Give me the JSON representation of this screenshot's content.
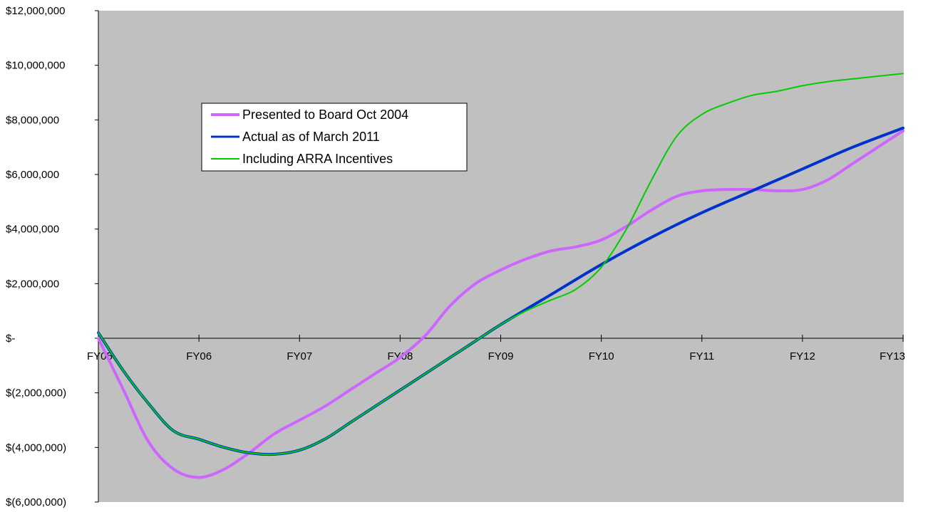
{
  "chart_data": {
    "type": "line",
    "title": "",
    "xlabel": "",
    "ylabel": "",
    "categories": [
      "FY05",
      "FY06",
      "FY07",
      "FY08",
      "FY09",
      "FY10",
      "FY11",
      "FY12",
      "FY13"
    ],
    "y_tick_labels": [
      "$12,000,000",
      "$10,000,000",
      "$8,000,000",
      "$6,000,000",
      "$4,000,000",
      "$2,000,000",
      "$-",
      "$(2,000,000)",
      "$(4,000,000)",
      "$(6,000,000)"
    ],
    "ylim": [
      -6000000,
      12000000
    ],
    "grid": false,
    "legend_position": "upper-left",
    "series": [
      {
        "name": "Presented to Board Oct 2004",
        "color": "#cc66ff",
        "x": [
          0,
          0.25,
          0.5,
          0.75,
          1.0,
          1.25,
          1.5,
          1.75,
          2.0,
          2.25,
          2.5,
          2.75,
          3.0,
          3.25,
          3.5,
          3.75,
          4.0,
          4.25,
          4.5,
          4.75,
          5.0,
          5.25,
          5.5,
          5.75,
          6.0,
          6.25,
          6.5,
          6.75,
          7.0,
          7.25,
          7.5,
          7.75,
          8.0
        ],
        "values": [
          0,
          -1900000,
          -3800000,
          -4800000,
          -5100000,
          -4800000,
          -4200000,
          -3500000,
          -3000000,
          -2500000,
          -1900000,
          -1300000,
          -700000,
          100000,
          1200000,
          2000000,
          2500000,
          2900000,
          3200000,
          3350000,
          3600000,
          4100000,
          4700000,
          5200000,
          5400000,
          5450000,
          5450000,
          5400000,
          5450000,
          5800000,
          6400000,
          7000000,
          7600000
        ]
      },
      {
        "name": "Actual as of March 2011",
        "color": "#0033cc",
        "x": [
          0,
          0.25,
          0.5,
          0.75,
          1.0,
          1.25,
          1.5,
          1.75,
          2.0,
          2.25,
          2.5,
          2.75,
          3.0,
          3.25,
          3.5,
          3.75,
          4.0,
          4.5,
          5.0,
          5.5,
          6.0,
          6.5,
          7.0,
          7.5,
          8.0
        ],
        "values": [
          200000,
          -1200000,
          -2400000,
          -3400000,
          -3700000,
          -4000000,
          -4200000,
          -4250000,
          -4100000,
          -3700000,
          -3100000,
          -2500000,
          -1900000,
          -1300000,
          -700000,
          -100000,
          500000,
          1600000,
          2700000,
          3700000,
          4600000,
          5400000,
          6200000,
          7000000,
          7700000
        ]
      },
      {
        "name": "Including ARRA Incentives",
        "color": "#00cc00",
        "x": [
          0,
          0.25,
          0.5,
          0.75,
          1.0,
          1.25,
          1.5,
          1.75,
          2.0,
          2.25,
          2.5,
          2.75,
          3.0,
          3.25,
          3.5,
          3.75,
          4.0,
          4.25,
          4.5,
          4.75,
          5.0,
          5.25,
          5.5,
          5.75,
          6.0,
          6.25,
          6.5,
          6.75,
          7.0,
          7.25,
          7.5,
          7.75,
          8.0
        ],
        "values": [
          200000,
          -1200000,
          -2400000,
          -3400000,
          -3700000,
          -4000000,
          -4200000,
          -4250000,
          -4100000,
          -3700000,
          -3100000,
          -2500000,
          -1900000,
          -1300000,
          -700000,
          -100000,
          500000,
          1000000,
          1400000,
          1800000,
          2600000,
          4000000,
          5800000,
          7400000,
          8200000,
          8600000,
          8900000,
          9050000,
          9250000,
          9400000,
          9500000,
          9600000,
          9700000
        ]
      }
    ]
  }
}
